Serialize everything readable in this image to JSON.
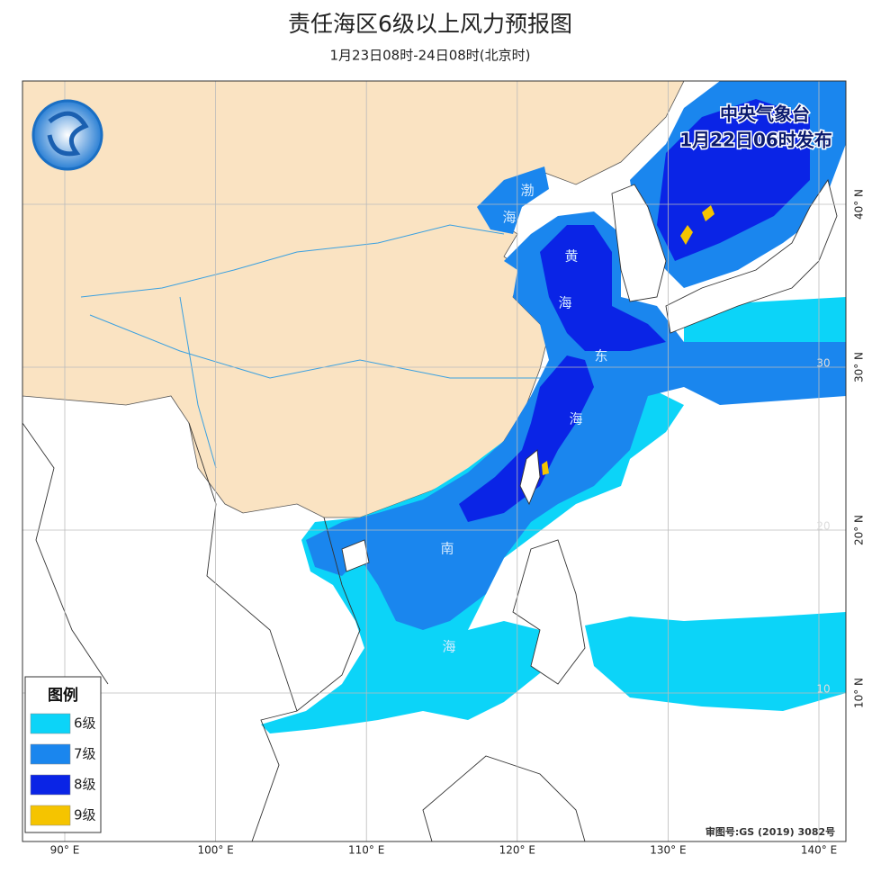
{
  "header": {
    "title": "责任海区6级以上风力预报图",
    "subtitle": "1月23日08时-24日08时(北京时)"
  },
  "issuer": {
    "agency": "中央气象台",
    "time": "1月22日06时发布"
  },
  "legend": {
    "title": "图例",
    "items": [
      {
        "label": "6级",
        "color": "#0cd4f8"
      },
      {
        "label": "7级",
        "color": "#1a86ee"
      },
      {
        "label": "8级",
        "color": "#0a24e6"
      },
      {
        "label": "9级",
        "color": "#f5c400"
      }
    ]
  },
  "sea_labels": [
    "渤",
    "海",
    "黄",
    "海",
    "东",
    "海",
    "南",
    "海"
  ],
  "map": {
    "lon_ticks": [
      {
        "value": 90,
        "label": "90° E"
      },
      {
        "value": 100,
        "label": "100° E"
      },
      {
        "value": 110,
        "label": "110° E"
      },
      {
        "value": 120,
        "label": "120° E"
      },
      {
        "value": 130,
        "label": "130° E"
      },
      {
        "value": 140,
        "label": "140° E"
      }
    ],
    "lat_ticks": [
      {
        "value": 10,
        "label": "10° N"
      },
      {
        "value": 20,
        "label": "20° N"
      },
      {
        "value": 30,
        "label": "30° N"
      },
      {
        "value": 40,
        "label": "40° N"
      }
    ],
    "inner_lat_labels": [
      30,
      20,
      10
    ]
  },
  "footer": {
    "approval": "审图号:GS (2019) 3082号"
  }
}
